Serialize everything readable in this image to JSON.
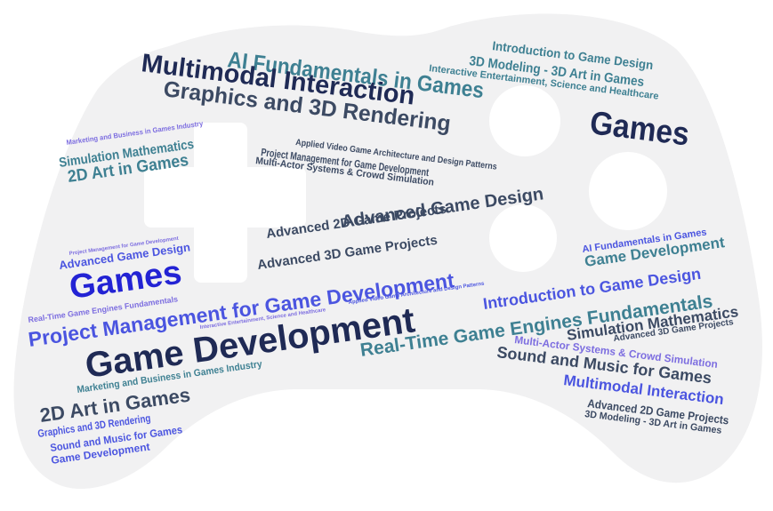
{
  "palette": {
    "background": "#ffffff",
    "controller_body": "#f1f1f2",
    "navy": "#1f2a55",
    "slate": "#3c4a63",
    "teal": "#3e8092",
    "blue": "#4b55e0",
    "royal": "#2323d4",
    "lavender": "#7d6ee0"
  },
  "icons": {
    "controller": "gamepad-icon"
  },
  "words": [
    {
      "text": "AI Fundamentals in Games",
      "color": "teal"
    },
    {
      "text": "Multimodal Interaction",
      "color": "navy"
    },
    {
      "text": "Graphics and 3D Rendering",
      "color": "slate"
    },
    {
      "text": "Introduction to Game Design",
      "color": "teal"
    },
    {
      "text": "3D Modeling - 3D Art in Games",
      "color": "teal"
    },
    {
      "text": "Interactive Entertainment, Science and Healthcare",
      "color": "teal"
    },
    {
      "text": "Games",
      "color": "navy"
    },
    {
      "text": "Marketing and Business in Games Industry",
      "color": "lavender"
    },
    {
      "text": "Simulation Mathematics",
      "color": "teal"
    },
    {
      "text": "2D Art in Games",
      "color": "teal"
    },
    {
      "text": "Applied Video Game Architecture and Design Patterns",
      "color": "slate"
    },
    {
      "text": "Project Management for Game Development",
      "color": "slate"
    },
    {
      "text": "Multi-Actor Systems & Crowd Simulation",
      "color": "slate"
    },
    {
      "text": "Advanced Game Design",
      "color": "slate"
    },
    {
      "text": "Advanced 2D Game Projects",
      "color": "slate"
    },
    {
      "text": "Advanced 3D Game Projects",
      "color": "slate"
    },
    {
      "text": "Project Management for Game Development",
      "color": "lavender"
    },
    {
      "text": "Advanced Game Design",
      "color": "blue"
    },
    {
      "text": "Games",
      "color": "royal"
    },
    {
      "text": "Real-Time Game Engines Fundamentals",
      "color": "lavender"
    },
    {
      "text": "Project Management for Game Development",
      "color": "blue"
    },
    {
      "text": "Interactive Entertainment, Science and Healthcare",
      "color": "lavender"
    },
    {
      "text": "Applied Video Game Architecture and Design Patterns",
      "color": "blue"
    },
    {
      "text": "Game Development",
      "color": "navy"
    },
    {
      "text": "AI Fundamentals in Games",
      "color": "blue"
    },
    {
      "text": "Game Development",
      "color": "teal"
    },
    {
      "text": "Introduction to Game Design",
      "color": "blue"
    },
    {
      "text": "Real-Time Game Engines Fundamentals",
      "color": "teal"
    },
    {
      "text": "Simulation Mathematics",
      "color": "slate"
    },
    {
      "text": "Advanced 3D Game Projects",
      "color": "slate"
    },
    {
      "text": "Multi-Actor Systems & Crowd Simulation",
      "color": "lavender"
    },
    {
      "text": "Sound and Music for Games",
      "color": "slate"
    },
    {
      "text": "Multimodal Interaction",
      "color": "blue"
    },
    {
      "text": "Advanced 2D Game Projects",
      "color": "slate"
    },
    {
      "text": "3D Modeling - 3D Art in Games",
      "color": "slate"
    },
    {
      "text": "Marketing and Business in Games Industry",
      "color": "teal"
    },
    {
      "text": "2D Art in Games",
      "color": "slate"
    },
    {
      "text": "Graphics and 3D Rendering",
      "color": "blue"
    },
    {
      "text": "Sound and Music for Games",
      "color": "blue"
    },
    {
      "text": "Game Development",
      "color": "blue"
    }
  ]
}
